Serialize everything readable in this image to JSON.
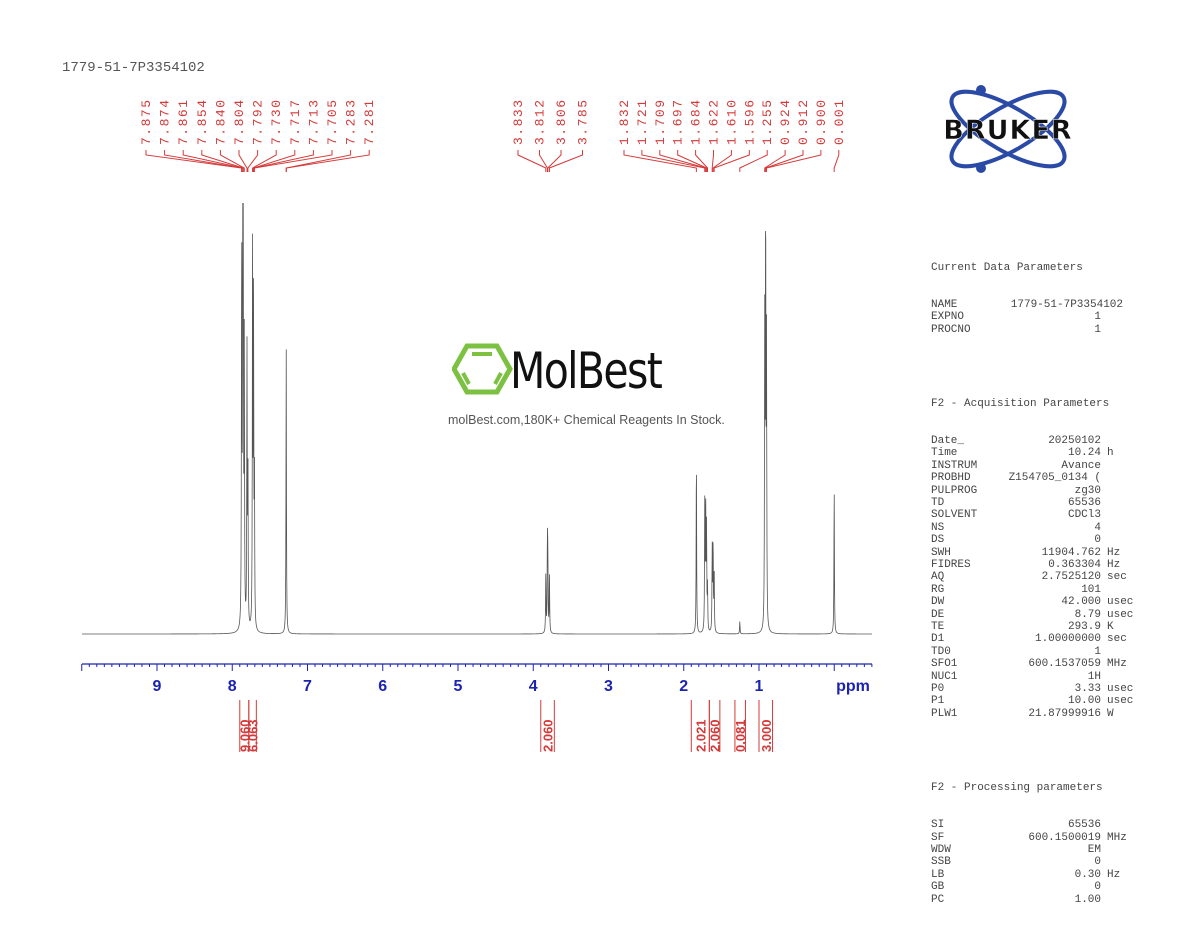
{
  "sample_id": "1779-51-7P3354102",
  "logo": {
    "brand": "BRUKER",
    "ring_color": "#2b4aa6"
  },
  "watermark": {
    "brand": "MolBest",
    "tagline": "molBest.com,180K+ Chemical Reagents In Stock.",
    "hex_color": "#7dc143"
  },
  "axis": {
    "unit_label": "ppm",
    "ticks": [
      "9",
      "8",
      "7",
      "6",
      "5",
      "4",
      "3",
      "2",
      "1"
    ],
    "color": "#1c23b0"
  },
  "peak_labels": {
    "group1": [
      "7.875",
      "7.874",
      "7.861",
      "7.854",
      "7.840",
      "7.804",
      "7.792",
      "7.730",
      "7.717",
      "7.713",
      "7.705",
      "7.283",
      "7.281"
    ],
    "group2": [
      "3.833",
      "3.812",
      "3.806",
      "3.785"
    ],
    "group3": [
      "1.832",
      "1.721",
      "1.709",
      "1.697",
      "1.684",
      "1.622",
      "1.610",
      "1.596",
      "1.255",
      "0.924",
      "0.912",
      "0.900",
      "0.001"
    ]
  },
  "integrals": [
    "9.060",
    "6.063",
    "2.060",
    "2.021",
    "2.060",
    "0.081",
    "3.000"
  ],
  "parameters": {
    "current": {
      "title": "Current Data Parameters",
      "rows": [
        {
          "k": "NAME",
          "v": "1779-51-7P3354102",
          "u": ""
        },
        {
          "k": "EXPNO",
          "v": "1",
          "u": ""
        },
        {
          "k": "PROCNO",
          "v": "1",
          "u": ""
        }
      ]
    },
    "acquisition": {
      "title": "F2 - Acquisition Parameters",
      "rows": [
        {
          "k": "Date_",
          "v": "20250102",
          "u": ""
        },
        {
          "k": "Time",
          "v": "10.24",
          "u": "h"
        },
        {
          "k": "INSTRUM",
          "v": "Avance",
          "u": ""
        },
        {
          "k": "PROBHD",
          "v": "Z154705_0134 (",
          "u": ""
        },
        {
          "k": "PULPROG",
          "v": "zg30",
          "u": ""
        },
        {
          "k": "TD",
          "v": "65536",
          "u": ""
        },
        {
          "k": "SOLVENT",
          "v": "CDCl3",
          "u": ""
        },
        {
          "k": "NS",
          "v": "4",
          "u": ""
        },
        {
          "k": "DS",
          "v": "0",
          "u": ""
        },
        {
          "k": "SWH",
          "v": "11904.762",
          "u": "Hz"
        },
        {
          "k": "FIDRES",
          "v": "0.363304",
          "u": "Hz"
        },
        {
          "k": "AQ",
          "v": "2.7525120",
          "u": "sec"
        },
        {
          "k": "RG",
          "v": "101",
          "u": ""
        },
        {
          "k": "DW",
          "v": "42.000",
          "u": "usec"
        },
        {
          "k": "DE",
          "v": "8.79",
          "u": "usec"
        },
        {
          "k": "TE",
          "v": "293.9",
          "u": "K"
        },
        {
          "k": "D1",
          "v": "1.00000000",
          "u": "sec"
        },
        {
          "k": "TD0",
          "v": "1",
          "u": ""
        },
        {
          "k": "SFO1",
          "v": "600.1537059",
          "u": "MHz"
        },
        {
          "k": "NUC1",
          "v": "1H",
          "u": ""
        },
        {
          "k": "P0",
          "v": "3.33",
          "u": "usec"
        },
        {
          "k": "P1",
          "v": "10.00",
          "u": "usec"
        },
        {
          "k": "PLW1",
          "v": "21.87999916",
          "u": "W"
        }
      ]
    },
    "processing": {
      "title": "F2 - Processing parameters",
      "rows": [
        {
          "k": "SI",
          "v": "65536",
          "u": ""
        },
        {
          "k": "SF",
          "v": "600.1500019",
          "u": "MHz"
        },
        {
          "k": "WDW",
          "v": "EM",
          "u": ""
        },
        {
          "k": "SSB",
          "v": "0",
          "u": ""
        },
        {
          "k": "LB",
          "v": "0.30",
          "u": "Hz"
        },
        {
          "k": "GB",
          "v": "0",
          "u": ""
        },
        {
          "k": "PC",
          "v": "1.00",
          "u": ""
        }
      ]
    }
  },
  "chart_data": {
    "type": "line",
    "title": "1779-51-7P3354102",
    "xlabel": "ppm",
    "ylabel": "",
    "xlim": [
      10.0,
      -0.5
    ],
    "x_reversed": true,
    "grid": false,
    "tick_labels": [
      "9",
      "8",
      "7",
      "6",
      "5",
      "4",
      "3",
      "2",
      "1"
    ],
    "peaks": [
      {
        "ppm": 7.875,
        "rel_height": 0.92
      },
      {
        "ppm": 7.861,
        "rel_height": 0.8
      },
      {
        "ppm": 7.854,
        "rel_height": 0.85
      },
      {
        "ppm": 7.84,
        "rel_height": 0.65
      },
      {
        "ppm": 7.804,
        "rel_height": 0.64
      },
      {
        "ppm": 7.792,
        "rel_height": 0.4
      },
      {
        "ppm": 7.73,
        "rel_height": 0.93
      },
      {
        "ppm": 7.717,
        "rel_height": 0.75
      },
      {
        "ppm": 7.705,
        "rel_height": 0.35
      },
      {
        "ppm": 7.283,
        "rel_height": 0.68
      },
      {
        "ppm": 3.833,
        "rel_height": 0.14
      },
      {
        "ppm": 3.812,
        "rel_height": 0.21
      },
      {
        "ppm": 3.806,
        "rel_height": 0.16
      },
      {
        "ppm": 3.785,
        "rel_height": 0.14
      },
      {
        "ppm": 1.832,
        "rel_height": 0.43
      },
      {
        "ppm": 1.721,
        "rel_height": 0.29
      },
      {
        "ppm": 1.709,
        "rel_height": 0.31
      },
      {
        "ppm": 1.697,
        "rel_height": 0.24
      },
      {
        "ppm": 1.684,
        "rel_height": 0.1
      },
      {
        "ppm": 1.622,
        "rel_height": 0.2
      },
      {
        "ppm": 1.61,
        "rel_height": 0.21
      },
      {
        "ppm": 1.596,
        "rel_height": 0.15
      },
      {
        "ppm": 1.255,
        "rel_height": 0.03
      },
      {
        "ppm": 0.924,
        "rel_height": 0.7
      },
      {
        "ppm": 0.912,
        "rel_height": 1.0
      },
      {
        "ppm": 0.9,
        "rel_height": 0.65
      },
      {
        "ppm": 0.001,
        "rel_height": 0.35
      }
    ],
    "integrals": [
      {
        "range": [
          7.9,
          7.78
        ],
        "value": 9.06
      },
      {
        "range": [
          7.78,
          7.68
        ],
        "value": 6.063
      },
      {
        "range": [
          3.9,
          3.72
        ],
        "value": 2.06
      },
      {
        "range": [
          1.9,
          1.66
        ],
        "value": 2.021
      },
      {
        "range": [
          1.66,
          1.52
        ],
        "value": 2.06
      },
      {
        "range": [
          1.32,
          1.18
        ],
        "value": 0.081
      },
      {
        "range": [
          1.0,
          0.82
        ],
        "value": 3.0
      }
    ],
    "solvent": "CDCl3",
    "nucleus": "1H",
    "frequency_mhz": 600.15
  }
}
